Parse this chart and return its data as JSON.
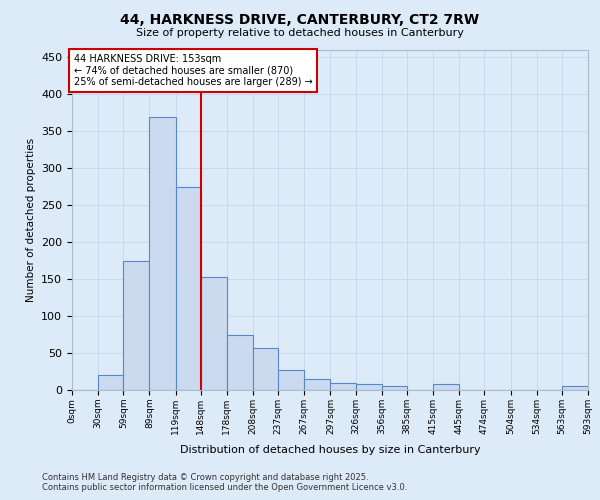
{
  "title_line1": "44, HARKNESS DRIVE, CANTERBURY, CT2 7RW",
  "title_line2": "Size of property relative to detached houses in Canterbury",
  "xlabel": "Distribution of detached houses by size in Canterbury",
  "ylabel": "Number of detached properties",
  "bar_bins": [
    0,
    30,
    59,
    89,
    119,
    148,
    178,
    208,
    237,
    267,
    297,
    326,
    356,
    385,
    415,
    445,
    474,
    504,
    534,
    563,
    593
  ],
  "bar_values": [
    0,
    20,
    175,
    370,
    275,
    153,
    75,
    57,
    27,
    15,
    10,
    8,
    5,
    0,
    8,
    0,
    0,
    0,
    0,
    5
  ],
  "bar_color": "#ccdaf0",
  "bar_edge_color": "#5588cc",
  "grid_color": "#c8d8ee",
  "property_line_x": 148,
  "property_line_color": "#cc0000",
  "annotation_text": "44 HARKNESS DRIVE: 153sqm\n← 74% of detached houses are smaller (870)\n25% of semi-detached houses are larger (289) →",
  "annotation_box_color": "#cc0000",
  "ylim": [
    0,
    460
  ],
  "yticks": [
    0,
    50,
    100,
    150,
    200,
    250,
    300,
    350,
    400,
    450
  ],
  "footer_line1": "Contains HM Land Registry data © Crown copyright and database right 2025.",
  "footer_line2": "Contains public sector information licensed under the Open Government Licence v3.0.",
  "bg_color": "#ddeaf8",
  "plot_bg_color": "#ddeaf8"
}
